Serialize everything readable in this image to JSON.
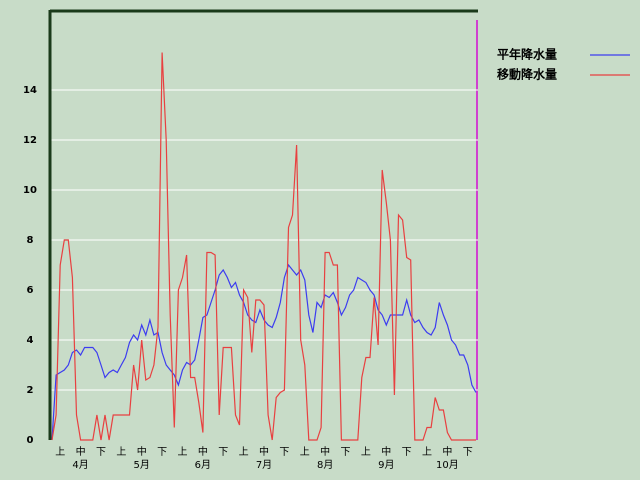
{
  "chart_data": {
    "type": "line",
    "categories": [
      null,
      null,
      "上",
      null,
      null,
      null,
      null,
      "中",
      null,
      null,
      null,
      null,
      "下",
      null,
      null,
      null,
      null,
      "上",
      null,
      null,
      null,
      null,
      "中",
      null,
      null,
      null,
      null,
      "下",
      null,
      null,
      null,
      null,
      "上",
      null,
      null,
      null,
      null,
      "中",
      null,
      null,
      null,
      null,
      "下",
      null,
      null,
      null,
      null,
      "上",
      null,
      null,
      null,
      null,
      "中",
      null,
      null,
      null,
      null,
      "下",
      null,
      null,
      null,
      null,
      "上",
      null,
      null,
      null,
      null,
      "中",
      null,
      null,
      null,
      null,
      "下",
      null,
      null,
      null,
      null,
      "上",
      null,
      null,
      null,
      null,
      "中",
      null,
      null,
      null,
      null,
      "下",
      null,
      null,
      null,
      null,
      "上",
      null,
      null,
      null,
      null,
      "中",
      null,
      null,
      null,
      null,
      "下",
      null,
      null
    ],
    "months": [
      "4月",
      "5月",
      "6月",
      "7月",
      "8月",
      "9月",
      "10月"
    ],
    "series": [
      {
        "name": "平年降水量",
        "color": "#3c3cf0",
        "values": [
          0,
          2.6,
          2.7,
          2.8,
          3.0,
          3.5,
          3.6,
          3.4,
          3.7,
          3.7,
          3.7,
          3.5,
          3.0,
          2.5,
          2.7,
          2.8,
          2.7,
          3.0,
          3.3,
          3.9,
          4.2,
          4.0,
          4.6,
          4.2,
          4.8,
          4.2,
          4.3,
          3.5,
          3.0,
          2.8,
          2.6,
          2.2,
          2.8,
          3.1,
          3.0,
          3.2,
          4.0,
          4.9,
          5.0,
          5.5,
          6.0,
          6.6,
          6.8,
          6.5,
          6.1,
          6.3,
          5.8,
          5.5,
          5.0,
          4.8,
          4.7,
          5.2,
          4.8,
          4.6,
          4.5,
          4.9,
          5.5,
          6.5,
          7.0,
          6.8,
          6.6,
          6.8,
          6.4,
          5.0,
          4.3,
          5.5,
          5.3,
          5.8,
          5.7,
          5.9,
          5.5,
          5.0,
          5.3,
          5.8,
          6.0,
          6.5,
          6.4,
          6.3,
          6.0,
          5.8,
          5.2,
          5.0,
          4.6,
          5.0,
          5.0,
          5.0,
          5.0,
          5.6,
          5.0,
          4.7,
          4.8,
          4.5,
          4.3,
          4.2,
          4.5,
          5.5,
          5.0,
          4.6,
          4.0,
          3.8,
          3.4,
          3.4,
          3.0,
          2.2,
          1.9
        ]
      },
      {
        "name": "移動降水量",
        "color": "#e84040",
        "values": [
          0,
          1.0,
          7.0,
          8.0,
          8.0,
          6.5,
          1.0,
          0,
          0,
          0,
          0,
          1.0,
          0,
          1.0,
          0,
          1.0,
          1.0,
          1.0,
          1.0,
          1.0,
          3.0,
          2.0,
          4.0,
          2.4,
          2.5,
          3.0,
          4.5,
          15.5,
          12.0,
          5.0,
          0.5,
          6.0,
          6.5,
          7.4,
          2.5,
          2.5,
          1.5,
          0.3,
          7.5,
          7.5,
          7.4,
          1.0,
          3.7,
          3.7,
          3.7,
          1.0,
          0.6,
          6.0,
          5.7,
          3.5,
          5.6,
          5.6,
          5.4,
          1.0,
          0,
          1.7,
          1.9,
          2.0,
          8.5,
          9.0,
          11.8,
          4.0,
          3.0,
          0,
          0,
          0,
          0.5,
          7.5,
          7.5,
          7.0,
          7.0,
          0,
          0,
          0,
          0,
          0,
          2.5,
          3.3,
          3.3,
          5.7,
          3.8,
          10.8,
          9.5,
          8.0,
          1.8,
          9.0,
          8.8,
          7.3,
          7.2,
          0,
          0,
          0,
          0.5,
          0.5,
          1.7,
          1.2,
          1.2,
          0.3,
          0,
          0,
          0,
          0,
          0,
          0,
          0
        ]
      }
    ],
    "ylim": [
      0,
      17.2
    ],
    "yticks": [
      0,
      2,
      4,
      6,
      8,
      10,
      12,
      14
    ],
    "grid": true
  }
}
